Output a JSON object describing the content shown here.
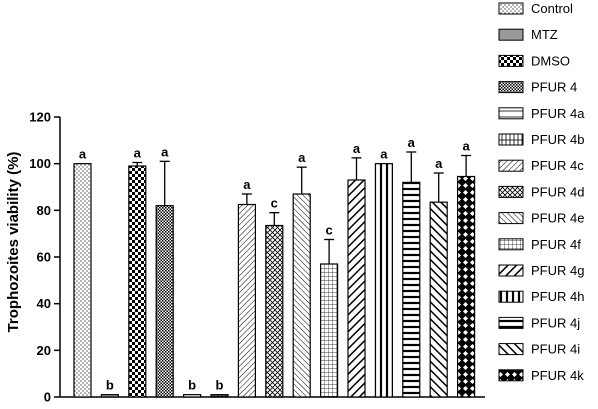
{
  "chart_data": {
    "type": "bar",
    "ylabel": "Trophozoites viability (%)",
    "ylim": [
      0,
      120
    ],
    "yticks": [
      0,
      20,
      40,
      60,
      80,
      100,
      120
    ],
    "legend_position": "right",
    "bars": [
      {
        "name": "Control",
        "value": 100,
        "error": 0,
        "label": "a",
        "pattern": "dots"
      },
      {
        "name": "MTZ",
        "value": 1,
        "error": 0,
        "label": "b",
        "pattern": "solid-gray"
      },
      {
        "name": "DMSO",
        "value": 99,
        "error": 1.5,
        "label": "a",
        "pattern": "checker-large"
      },
      {
        "name": "PFUR 4",
        "value": 82,
        "error": 19,
        "label": "a",
        "pattern": "checker-small"
      },
      {
        "name": "PFUR 4a",
        "value": 1,
        "error": 0,
        "label": "b",
        "pattern": "horizontal-wide"
      },
      {
        "name": "PFUR 4b",
        "value": 1,
        "error": 0,
        "label": "b",
        "pattern": "vertical-lines"
      },
      {
        "name": "PFUR 4c",
        "value": 82.5,
        "error": 4.5,
        "label": "a",
        "pattern": "diag-down-thin"
      },
      {
        "name": "PFUR 4d",
        "value": 73.5,
        "error": 5.5,
        "label": "c",
        "pattern": "diag-cross"
      },
      {
        "name": "PFUR 4e",
        "value": 87,
        "error": 11.5,
        "label": "a",
        "pattern": "diag-up-thin"
      },
      {
        "name": "PFUR 4f",
        "value": 57,
        "error": 10.5,
        "label": "c",
        "pattern": "grid"
      },
      {
        "name": "PFUR 4g",
        "value": 93,
        "error": 9.5,
        "label": "a",
        "pattern": "diag-down-thick"
      },
      {
        "name": "PFUR 4h",
        "value": 100,
        "error": 0,
        "label": "a",
        "pattern": "vertical-thick"
      },
      {
        "name": "PFUR 4j",
        "value": 92,
        "error": 13,
        "label": "a",
        "pattern": "horizontal-thick"
      },
      {
        "name": "PFUR 4i",
        "value": 83.5,
        "error": 12.5,
        "label": "a",
        "pattern": "diag-up-thick"
      },
      {
        "name": "PFUR 4k",
        "value": 94.5,
        "error": 9,
        "label": "a",
        "pattern": "diamond"
      }
    ]
  }
}
